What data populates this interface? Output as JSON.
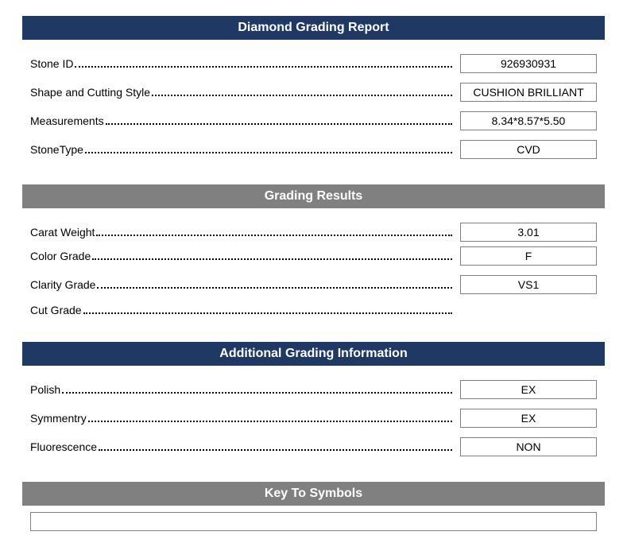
{
  "colors": {
    "navy": "#1f3864",
    "gray": "#808080",
    "white": "#ffffff",
    "text": "#000000"
  },
  "sections": {
    "report": {
      "title": "Diamond Grading Report",
      "header_style": "navy",
      "rows": [
        {
          "label": "Stone ID",
          "value": "926930931"
        },
        {
          "label": "Shape and Cutting Style",
          "value": "CUSHION BRILLIANT"
        },
        {
          "label": "Measurements",
          "value": "8.34*8.57*5.50"
        },
        {
          "label": "StoneType",
          "value": "CVD"
        }
      ]
    },
    "grading": {
      "title": "Grading Results",
      "header_style": "gray",
      "rows": [
        {
          "label": "Carat Weight",
          "value": "3.01"
        },
        {
          "label": "Color Grade",
          "value": "F"
        },
        {
          "label": "Clarity Grade",
          "value": "VS1"
        },
        {
          "label": "Cut Grade",
          "value": null
        }
      ]
    },
    "additional": {
      "title": "Additional Grading Information",
      "header_style": "navy",
      "rows": [
        {
          "label": "Polish",
          "value": "EX"
        },
        {
          "label": "Symmentry",
          "value": "EX"
        },
        {
          "label": "Fluorescence",
          "value": "NON"
        }
      ]
    },
    "symbols": {
      "title": "Key To Symbols",
      "header_style": "gray"
    }
  }
}
